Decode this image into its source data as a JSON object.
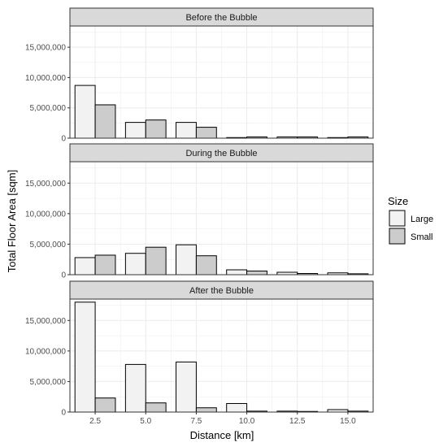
{
  "chart_data": {
    "type": "bar",
    "xlabel": "Distance [km]",
    "ylabel": "Total Floor Area [sqm]",
    "x": [
      2.5,
      5.0,
      7.5,
      10.0,
      12.5,
      15.0
    ],
    "x_tick_labels": [
      "2.5",
      "5.0",
      "7.5",
      "10.0",
      "12.5",
      "15.0"
    ],
    "xlim": [
      1.25,
      16.25
    ],
    "ylim": [
      0,
      18500000
    ],
    "y_ticks": [
      0,
      5000000,
      10000000,
      15000000
    ],
    "y_tick_labels": [
      "0",
      "5,000,000",
      "10,000,000",
      "15,000,000"
    ],
    "grid": true,
    "legend": {
      "title": "Size",
      "placement": "right",
      "entries": [
        {
          "label": "Large",
          "color": "#f2f2f2"
        },
        {
          "label": "Small",
          "color": "#cccccc"
        }
      ]
    },
    "facets": [
      {
        "title": "Before the Bubble",
        "series": [
          {
            "name": "Large",
            "values": [
              8700000,
              2600000,
              2600000,
              100000,
              200000,
              100000
            ]
          },
          {
            "name": "Small",
            "values": [
              5500000,
              3000000,
              1800000,
              200000,
              200000,
              200000
            ]
          }
        ]
      },
      {
        "title": "During the Bubble",
        "series": [
          {
            "name": "Large",
            "values": [
              2800000,
              3500000,
              4900000,
              800000,
              400000,
              300000
            ]
          },
          {
            "name": "Small",
            "values": [
              3200000,
              4500000,
              3100000,
              600000,
              200000,
              150000
            ]
          }
        ]
      },
      {
        "title": "After the Bubble",
        "series": [
          {
            "name": "Large",
            "values": [
              18000000,
              7800000,
              8200000,
              1400000,
              150000,
              400000
            ]
          },
          {
            "name": "Small",
            "values": [
              2300000,
              1500000,
              700000,
              150000,
              100000,
              150000
            ]
          }
        ]
      }
    ]
  },
  "colors": {
    "strip_background": "#d9d9d9",
    "panel_border": "#333333",
    "gridline": "#ebebeb",
    "bar_outline": "#000000"
  }
}
